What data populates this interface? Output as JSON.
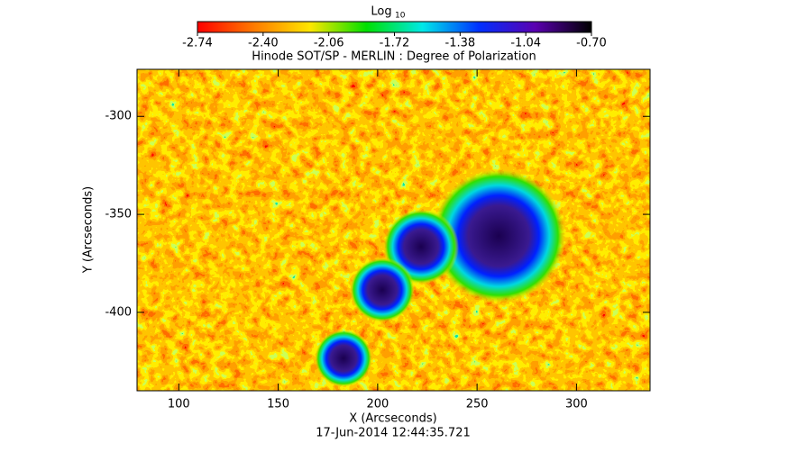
{
  "chart_data": {
    "type": "heatmap",
    "title": "Hinode SOT/SP - MERLIN : Degree of Polarization",
    "x_label": "X (Arcseconds)",
    "y_label": "Y (Arcseconds)",
    "footer": "17-Jun-2014 12:44:35.721",
    "xlim": [
      79,
      337
    ],
    "xticks": [
      100,
      150,
      200,
      250,
      300
    ],
    "ylim": [
      -440,
      -276
    ],
    "yticks": [
      -300,
      -350,
      -400
    ],
    "colorbar": {
      "title": "Log",
      "title_subscript": "10",
      "clim": [
        -2.74,
        -0.7
      ],
      "ticks": [
        {
          "value": -2.74,
          "label": "-2.74"
        },
        {
          "value": -2.4,
          "label": "-2.40"
        },
        {
          "value": -2.06,
          "label": "-2.06"
        },
        {
          "value": -1.72,
          "label": "-1.72"
        },
        {
          "value": -1.38,
          "label": "-1.38"
        },
        {
          "value": -1.04,
          "label": "-1.04"
        },
        {
          "value": -0.7,
          "label": "-0.70"
        }
      ],
      "colormap": [
        "#ff0000",
        "#ff7a00",
        "#ffe600",
        "#00e000",
        "#00e8e8",
        "#0030ff",
        "#5a00b0",
        "#000000"
      ]
    }
  }
}
